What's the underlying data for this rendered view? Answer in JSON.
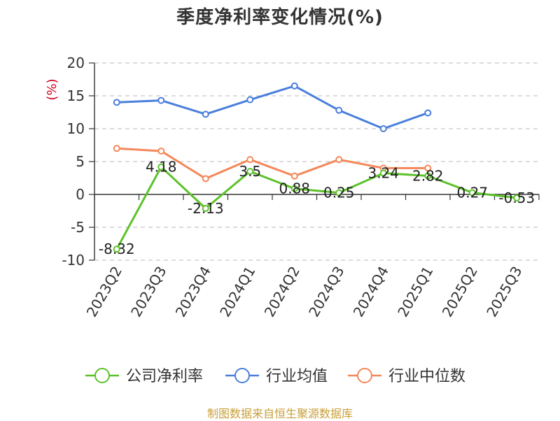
{
  "chart_data": {
    "type": "line",
    "title": "季度净利率变化情况(%)",
    "ylabel": "(%)",
    "xlabel": "",
    "ylim": [
      -10,
      20
    ],
    "yticks": [
      -10,
      -5,
      0,
      5,
      10,
      15,
      20
    ],
    "grid": true,
    "legend_position": "bottom",
    "categories": [
      "2023Q2",
      "2023Q3",
      "2023Q4",
      "2024Q1",
      "2024Q2",
      "2024Q3",
      "2024Q4",
      "2025Q1",
      "2025Q2",
      "2025Q3"
    ],
    "series": [
      {
        "name": "公司净利率",
        "color": "#5cc22a",
        "show_labels": true,
        "values": [
          -8.32,
          4.18,
          -2.13,
          3.5,
          0.88,
          0.25,
          3.24,
          2.82,
          0.27,
          -0.53
        ]
      },
      {
        "name": "行业均值",
        "color": "#4a7fdc",
        "show_labels": false,
        "values": [
          14.0,
          14.3,
          12.2,
          14.4,
          16.5,
          12.8,
          10.0,
          12.4,
          null,
          null
        ]
      },
      {
        "name": "行业中位数",
        "color": "#f5885a",
        "show_labels": false,
        "values": [
          7.0,
          6.6,
          2.4,
          5.3,
          2.8,
          5.3,
          4.0,
          4.0,
          null,
          null
        ]
      }
    ]
  },
  "footer": {
    "text": "制图数据来自恒生聚源数据库",
    "color": "#c8a03c"
  }
}
